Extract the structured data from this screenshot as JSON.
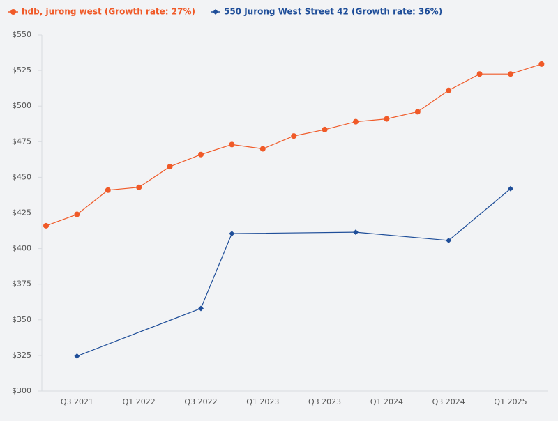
{
  "chart_data": {
    "type": "line",
    "categories": [
      null,
      "Q3 2021",
      null,
      "Q1 2022",
      null,
      "Q3 2022",
      null,
      "Q1 2023",
      null,
      "Q3 2023",
      null,
      "Q1 2024",
      null,
      "Q3 2024",
      null,
      "Q1 2025",
      null
    ],
    "series": [
      {
        "name": "hdb, jurong west (Growth rate: 27%)",
        "color": "#f05a28",
        "marker": "circle",
        "values": [
          416,
          424,
          441,
          443,
          457.5,
          466,
          473,
          470,
          479,
          483.5,
          489,
          491,
          496,
          511,
          522.5,
          522.5,
          529.5
        ]
      },
      {
        "name": "550 Jurong West Street 42 (Growth rate: 36%)",
        "color": "#1f4e99",
        "marker": "diamond",
        "values": [
          null,
          324.5,
          null,
          null,
          null,
          358,
          410.5,
          null,
          null,
          null,
          411.5,
          null,
          null,
          405.7,
          null,
          442,
          null
        ]
      }
    ],
    "span_gaps": true,
    "ylim": [
      300,
      550
    ],
    "yticks": [
      {
        "value": 300,
        "label": "$300"
      },
      {
        "value": 325,
        "label": "$325"
      },
      {
        "value": 350,
        "label": "$350"
      },
      {
        "value": 375,
        "label": "$375"
      },
      {
        "value": 400,
        "label": "$400"
      },
      {
        "value": 425,
        "label": "$425"
      },
      {
        "value": 450,
        "label": "$450"
      },
      {
        "value": 475,
        "label": "$475"
      },
      {
        "value": 500,
        "label": "$500"
      },
      {
        "value": 525,
        "label": "$525"
      },
      {
        "value": 550,
        "label": "$550"
      }
    ],
    "grid": false,
    "legend": "top-left"
  }
}
